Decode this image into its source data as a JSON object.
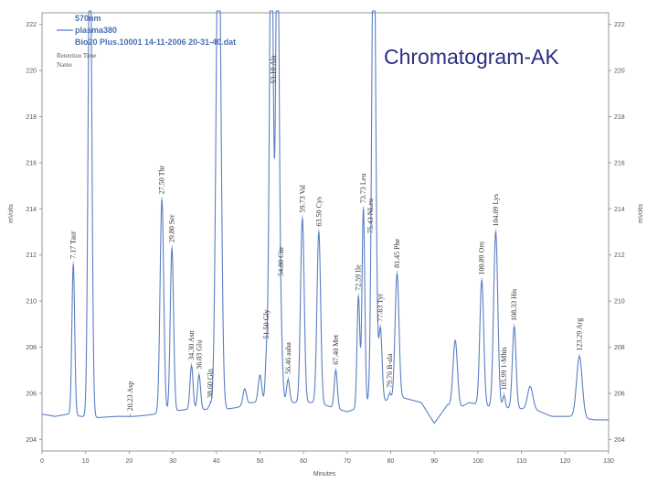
{
  "slide_title": "Chromatogram-AK",
  "header": {
    "wavelength": "570nm",
    "trace_name": "plasma380",
    "file": "Bio20 Plus.10001 14-11-2006 20-31-40.dat",
    "row1": "Retention Time",
    "row2": "Name"
  },
  "chart_data": {
    "type": "line",
    "xlabel": "Minutes",
    "ylabel_left": "mVolts",
    "ylabel_right": "mVolts",
    "xlim": [
      0,
      130
    ],
    "ylim": [
      203.5,
      222.5
    ],
    "x_ticks": [
      0,
      10,
      20,
      30,
      40,
      50,
      60,
      70,
      80,
      90,
      100,
      110,
      120,
      130
    ],
    "y_ticks": [
      204,
      206,
      208,
      210,
      212,
      214,
      216,
      218,
      220,
      222
    ],
    "series": [
      {
        "name": "plasma380",
        "color": "#5b7fc4",
        "baseline": 205.0,
        "points": [
          [
            0,
            205.1
          ],
          [
            3,
            205.0
          ],
          [
            6,
            205.1
          ],
          [
            9,
            205.0
          ],
          [
            13,
            204.95
          ],
          [
            17,
            205.0
          ],
          [
            21,
            205.0
          ],
          [
            24,
            205.05
          ],
          [
            26,
            205.1
          ],
          [
            33,
            205.3
          ],
          [
            42,
            205.3
          ],
          [
            45,
            205.4
          ],
          [
            48,
            205.6
          ],
          [
            63,
            205.6
          ],
          [
            70,
            205.2
          ],
          [
            76,
            205.6
          ],
          [
            83,
            205.8
          ],
          [
            87,
            205.6
          ],
          [
            90,
            204.7
          ],
          [
            93,
            205.5
          ],
          [
            96,
            205.4
          ],
          [
            98,
            205.6
          ],
          [
            103,
            205.4
          ],
          [
            113,
            205.3
          ],
          [
            117,
            205.0
          ],
          [
            121,
            205.0
          ],
          [
            127,
            204.85
          ],
          [
            130,
            204.85
          ]
        ],
        "peaks": [
          {
            "rt": 7.17,
            "height": 211.6,
            "w": 0.32,
            "label": "7.17  Taur"
          },
          {
            "rt": 11.0,
            "height": 228.0,
            "w": 0.4,
            "label": ""
          },
          {
            "rt": 20.23,
            "height": 205.0,
            "w": 0.3,
            "label": "20.23  Asp"
          },
          {
            "rt": 27.5,
            "height": 214.4,
            "w": 0.42,
            "label": "27.50  Thr"
          },
          {
            "rt": 29.8,
            "height": 212.3,
            "w": 0.38,
            "label": "29.80  Ser"
          },
          {
            "rt": 34.3,
            "height": 207.2,
            "w": 0.35,
            "label": "34.30  Asn"
          },
          {
            "rt": 36.03,
            "height": 206.8,
            "w": 0.35,
            "label": "36.03  Glu"
          },
          {
            "rt": 38.6,
            "height": 205.5,
            "w": 0.35,
            "label": "38.60  Gln"
          },
          {
            "rt": 40.5,
            "height": 228.0,
            "w": 0.55,
            "label": ""
          },
          {
            "rt": 46.5,
            "height": 206.2,
            "w": 0.4,
            "label": ""
          },
          {
            "rt": 50.0,
            "height": 206.8,
            "w": 0.4,
            "label": ""
          },
          {
            "rt": 51.5,
            "height": 207.4,
            "w": 0.3,
            "label": "51.50  Gly"
          },
          {
            "rt": 52.6,
            "height": 228.0,
            "w": 0.42,
            "label": ""
          },
          {
            "rt": 53.1,
            "height": 206.8,
            "w": 0.3,
            "label": "53.10  Ala"
          },
          {
            "rt": 54.0,
            "height": 228.0,
            "w": 0.38,
            "label": ""
          },
          {
            "rt": 54.8,
            "height": 208.4,
            "w": 0.38,
            "label": "54.80  Citr"
          },
          {
            "rt": 56.46,
            "height": 206.6,
            "w": 0.35,
            "label": "56.46  aaba"
          },
          {
            "rt": 59.73,
            "height": 213.6,
            "w": 0.42,
            "label": "59.73  Val"
          },
          {
            "rt": 63.5,
            "height": 213.0,
            "w": 0.42,
            "label": "63.50  Cys"
          },
          {
            "rt": 67.4,
            "height": 207.0,
            "w": 0.35,
            "label": "67.40  Met"
          },
          {
            "rt": 72.59,
            "height": 210.2,
            "w": 0.32,
            "label": "72.59  Ile"
          },
          {
            "rt": 73.73,
            "height": 214.0,
            "w": 0.32,
            "label": "73.73  Leu"
          },
          {
            "rt": 75.43,
            "height": 205.3,
            "w": 0.3,
            "label": "75.43  NLeu"
          },
          {
            "rt": 76.1,
            "height": 228.0,
            "w": 0.45,
            "label": ""
          },
          {
            "rt": 77.63,
            "height": 208.8,
            "w": 0.38,
            "label": "77.63  Tyr"
          },
          {
            "rt": 79.76,
            "height": 206.0,
            "w": 0.3,
            "label": "79.76  B-ala"
          },
          {
            "rt": 81.45,
            "height": 211.2,
            "w": 0.45,
            "label": "81.45  Phe"
          },
          {
            "rt": 94.8,
            "height": 208.3,
            "w": 0.5,
            "label": ""
          },
          {
            "rt": 100.89,
            "height": 210.9,
            "w": 0.45,
            "label": "100.89  Orn"
          },
          {
            "rt": 104.09,
            "height": 213.0,
            "w": 0.48,
            "label": "104.09  Lys"
          },
          {
            "rt": 105.99,
            "height": 205.9,
            "w": 0.3,
            "label": "105.99  1-Mhis"
          },
          {
            "rt": 108.33,
            "height": 208.9,
            "w": 0.42,
            "label": "108.33  His"
          },
          {
            "rt": 112.0,
            "height": 206.3,
            "w": 0.6,
            "label": ""
          },
          {
            "rt": 123.29,
            "height": 207.6,
            "w": 0.65,
            "label": "123.29  Arg"
          }
        ]
      }
    ]
  }
}
